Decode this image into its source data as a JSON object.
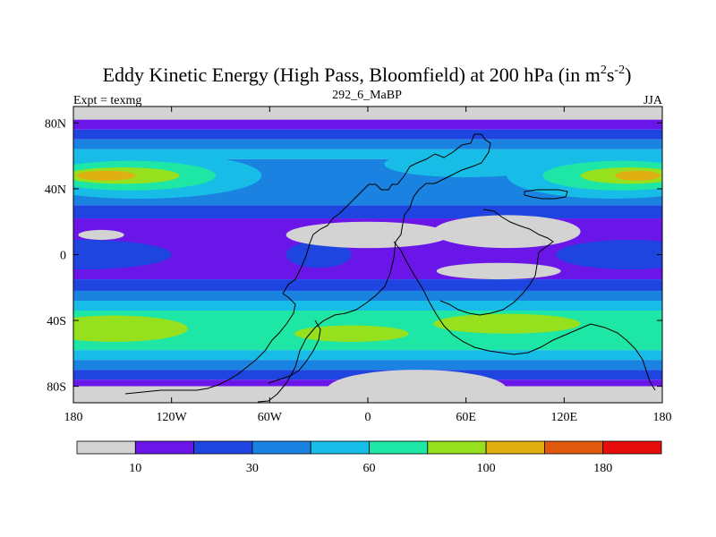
{
  "chart_data": {
    "type": "heatmap",
    "title": "Eddy Kinetic Energy (High Pass, Bloomfield) at 200 hPa (in m",
    "title_units_sup1": "2",
    "title_units_mid": "s",
    "title_units_sup2": "-2",
    "title_close": ")",
    "subtitle_left": "Expt = texmg",
    "subtitle_center": "292_6_MaBP",
    "subtitle_right": "JJA",
    "x_axis": {
      "range": [
        -180,
        180
      ],
      "ticks": [
        -180,
        -120,
        -60,
        0,
        60,
        120,
        180
      ],
      "tick_labels": [
        "180",
        "120W",
        "60W",
        "0",
        "60E",
        "120E",
        "180"
      ]
    },
    "y_axis": {
      "range": [
        -90,
        90
      ],
      "ticks": [
        80,
        40,
        0,
        -40,
        -80
      ],
      "tick_labels": [
        "80N",
        "40N",
        "0",
        "40S",
        "80S"
      ]
    },
    "colorbar": {
      "colors": [
        "#d3d3d3",
        "#6a16e8",
        "#1f45e0",
        "#1a82e0",
        "#17bde6",
        "#1ee6a5",
        "#96e01e",
        "#e0b013",
        "#e0580d",
        "#e80d0d"
      ],
      "labels": [
        {
          "value": "10",
          "boundary": 1
        },
        {
          "value": "30",
          "boundary": 3
        },
        {
          "value": "60",
          "boundary": 5
        },
        {
          "value": "100",
          "boundary": 7
        },
        {
          "value": "180",
          "boundary": 9
        }
      ]
    },
    "regions": {
      "band_base": [
        {
          "lat_from": 82,
          "lat_to": 90,
          "level": 0
        },
        {
          "lat_from": 76,
          "lat_to": 82,
          "level": 1
        },
        {
          "lat_from": 70,
          "lat_to": 76,
          "level": 2
        },
        {
          "lat_from": 64,
          "lat_to": 70,
          "level": 3
        },
        {
          "lat_from": 58,
          "lat_to": 64,
          "level": 4
        },
        {
          "lat_from": 30,
          "lat_to": 58,
          "level": 3
        },
        {
          "lat_from": 22,
          "lat_to": 30,
          "level": 2
        },
        {
          "lat_from": -15,
          "lat_to": 22,
          "level": 1
        },
        {
          "lat_from": -22,
          "lat_to": -15,
          "level": 2
        },
        {
          "lat_from": -28,
          "lat_to": -22,
          "level": 3
        },
        {
          "lat_from": -34,
          "lat_to": -28,
          "level": 4
        },
        {
          "lat_from": -58,
          "lat_to": -34,
          "level": 5
        },
        {
          "lat_from": -64,
          "lat_to": -58,
          "level": 4
        },
        {
          "lat_from": -70,
          "lat_to": -64,
          "level": 3
        },
        {
          "lat_from": -76,
          "lat_to": -70,
          "level": 2
        },
        {
          "lat_from": -80,
          "lat_to": -76,
          "level": 1
        },
        {
          "lat_from": -90,
          "lat_to": -80,
          "level": 0
        }
      ],
      "blobs": [
        {
          "level": 4,
          "lon": -140,
          "lat": 48,
          "rlon": 75,
          "rlat": 14
        },
        {
          "level": 5,
          "lon": -145,
          "lat": 48,
          "rlon": 52,
          "rlat": 9
        },
        {
          "level": 6,
          "lon": -150,
          "lat": 48,
          "rlon": 35,
          "rlat": 5
        },
        {
          "level": 7,
          "lon": -160,
          "lat": 48,
          "rlon": 18,
          "rlat": 3
        },
        {
          "level": 4,
          "lon": 150,
          "lat": 48,
          "rlon": 65,
          "rlat": 14
        },
        {
          "level": 5,
          "lon": 155,
          "lat": 48,
          "rlon": 48,
          "rlat": 9
        },
        {
          "level": 6,
          "lon": 160,
          "lat": 48,
          "rlon": 30,
          "rlat": 5
        },
        {
          "level": 7,
          "lon": 165,
          "lat": 48,
          "rlon": 14,
          "rlat": 3
        },
        {
          "level": 4,
          "lon": 60,
          "lat": 55,
          "rlon": 50,
          "rlat": 8
        },
        {
          "level": 2,
          "lon": -175,
          "lat": 0,
          "rlon": 55,
          "rlat": 9
        },
        {
          "level": 2,
          "lon": 160,
          "lat": 0,
          "rlon": 45,
          "rlat": 9
        },
        {
          "level": 2,
          "lon": -30,
          "lat": 0,
          "rlon": 20,
          "rlat": 8
        },
        {
          "level": 6,
          "lon": -155,
          "lat": -45,
          "rlon": 45,
          "rlat": 8
        },
        {
          "level": 6,
          "lon": 85,
          "lat": -42,
          "rlon": 45,
          "rlat": 6
        },
        {
          "level": 6,
          "lon": -10,
          "lat": -48,
          "rlon": 35,
          "rlat": 5
        },
        {
          "level": 0,
          "lon": -163,
          "lat": 12,
          "rlon": 14,
          "rlat": 3
        },
        {
          "level": 0,
          "lon": 0,
          "lat": 12,
          "rlon": 50,
          "rlat": 8
        },
        {
          "level": 0,
          "lon": 85,
          "lat": 14,
          "rlon": 45,
          "rlat": 10
        },
        {
          "level": 0,
          "lon": 80,
          "lat": -10,
          "rlon": 38,
          "rlat": 5
        },
        {
          "level": 0,
          "lon": 30,
          "lat": -82,
          "rlon": 55,
          "rlat": 12
        }
      ]
    }
  }
}
